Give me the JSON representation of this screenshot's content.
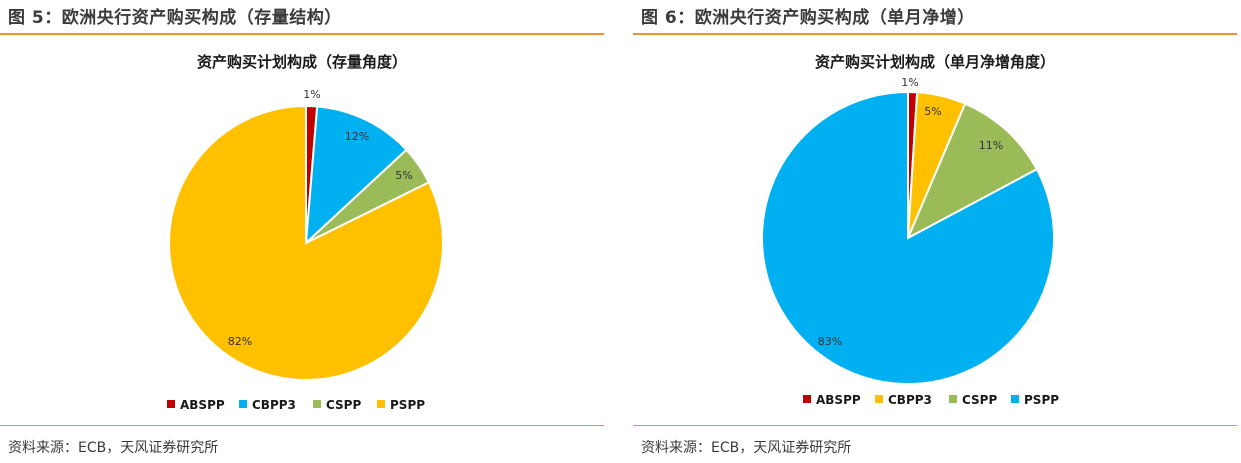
{
  "left": {
    "figure_title": "图 5：欧洲央行资产购买构成（存量结构）",
    "source": "资料来源：ECB，天风证券研究所"
  },
  "right": {
    "figure_title": "图 6：欧洲央行资产购买构成（单月净增）",
    "source": "资料来源：ECB，天风证券研究所"
  },
  "chart_data": [
    {
      "type": "pie",
      "title": "资产购买计划构成（存量角度）",
      "categories": [
        "ABSPP",
        "CBPP3",
        "CSPP",
        "PSPP"
      ],
      "values": [
        1.3,
        11.8,
        4.6,
        82.3
      ],
      "data_labels": [
        "1%",
        "12%",
        "5%",
        "82%"
      ],
      "colors": [
        "#c00000",
        "#00b0f0",
        "#9bbb59",
        "#ffc000"
      ],
      "start": "12 o'clock, clockwise",
      "legend": "bottom"
    },
    {
      "type": "pie",
      "title": "资产购买计划构成（单月净增角度）",
      "categories": [
        "ABSPP",
        "CBPP3",
        "CSPP",
        "PSPP"
      ],
      "values": [
        1.0,
        5.4,
        10.8,
        82.8
      ],
      "data_labels": [
        "1%",
        "5%",
        "11%",
        "83%"
      ],
      "colors": [
        "#c00000",
        "#ffc000",
        "#9bbb59",
        "#00b0f0"
      ],
      "start": "12 o'clock, clockwise",
      "legend": "bottom"
    }
  ]
}
